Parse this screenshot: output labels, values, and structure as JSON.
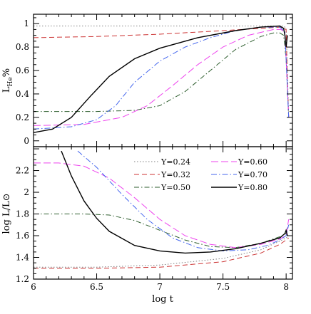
{
  "chart_data": [
    {
      "type": "line",
      "panel": "top",
      "xlabel": "",
      "ylabel": "L_He%",
      "ylabel_main": "L",
      "ylabel_sub": "He",
      "ylabel_suffix": "%",
      "xlim": [
        6,
        8.05
      ],
      "ylim": [
        -0.05,
        1.08
      ],
      "xticks": [
        6,
        6.5,
        7,
        7.5,
        8
      ],
      "xtick_labels_visible": false,
      "yticks": [
        0,
        0.2,
        0.4,
        0.6,
        0.8,
        1
      ],
      "ytick_labels": [
        "0",
        "0.2",
        "0.4",
        "0.6",
        "0.8",
        "1"
      ],
      "grid": false,
      "series": [
        {
          "name": "Y=0.24",
          "color": "#808080",
          "dash": "1.5,2.5",
          "x": [
            6,
            7.0,
            7.8,
            7.98,
            8.0,
            8.01,
            8.02
          ],
          "y": [
            0.98,
            0.98,
            0.98,
            0.98,
            0.96,
            0.6,
            0.2
          ]
        },
        {
          "name": "Y=0.32",
          "color": "#cc3333",
          "dash": "7,4",
          "x": [
            6,
            6.5,
            7.0,
            7.5,
            7.8,
            7.95,
            8.0,
            8.01,
            8.02
          ],
          "y": [
            0.88,
            0.89,
            0.91,
            0.94,
            0.96,
            0.97,
            0.95,
            0.5,
            0.2
          ]
        },
        {
          "name": "Y=0.50",
          "color": "#2e5e2e",
          "dash": "7,3,1.5,3",
          "x": [
            6,
            6.5,
            6.8,
            7.0,
            7.2,
            7.4,
            7.6,
            7.8,
            7.9,
            7.95,
            7.98,
            8.0,
            8.02
          ],
          "y": [
            0.25,
            0.25,
            0.26,
            0.3,
            0.42,
            0.6,
            0.78,
            0.89,
            0.92,
            0.92,
            0.9,
            0.7,
            0.2
          ]
        },
        {
          "name": "Y=0.60",
          "color": "#ee44ee",
          "dash": "10,4",
          "x": [
            6,
            6.4,
            6.7,
            6.9,
            7.1,
            7.3,
            7.5,
            7.7,
            7.9,
            7.96,
            7.99,
            8.0,
            8.02
          ],
          "y": [
            0.13,
            0.14,
            0.2,
            0.3,
            0.47,
            0.65,
            0.8,
            0.9,
            0.95,
            0.95,
            0.92,
            0.7,
            0.2
          ]
        },
        {
          "name": "Y=0.70",
          "color": "#4466ee",
          "dash": "8,3,1.5,3",
          "x": [
            6,
            6.3,
            6.5,
            6.65,
            6.8,
            7.0,
            7.2,
            7.4,
            7.6,
            7.8,
            7.95,
            7.99,
            8.02
          ],
          "y": [
            0.1,
            0.12,
            0.18,
            0.3,
            0.5,
            0.68,
            0.8,
            0.88,
            0.94,
            0.97,
            0.97,
            0.93,
            0.2
          ]
        },
        {
          "name": "Y=0.80",
          "color": "#000000",
          "dash": "",
          "x": [
            6,
            6.15,
            6.3,
            6.45,
            6.6,
            6.8,
            7.0,
            7.3,
            7.6,
            7.8,
            7.95,
            7.98,
            7.99,
            8.0,
            8.01
          ],
          "y": [
            0.07,
            0.1,
            0.2,
            0.38,
            0.55,
            0.7,
            0.79,
            0.88,
            0.94,
            0.97,
            0.98,
            0.96,
            0.9,
            0.8,
            0.9
          ]
        }
      ]
    },
    {
      "type": "line",
      "panel": "bottom",
      "xlabel": "log t",
      "ylabel": "log L/L⊙",
      "xlim": [
        6,
        8.05
      ],
      "ylim": [
        1.2,
        2.42
      ],
      "xticks": [
        6,
        6.5,
        7,
        7.5,
        8
      ],
      "xtick_labels": [
        "6",
        "6.5",
        "7",
        "7.5",
        "8"
      ],
      "yticks": [
        1.2,
        1.4,
        1.6,
        1.8,
        2,
        2.2
      ],
      "ytick_labels": [
        "1.2",
        "1.4",
        "1.6",
        "1.8",
        "2",
        "2.2"
      ],
      "grid": false,
      "legend": "top-right",
      "series": [
        {
          "name": "Y=0.24",
          "color": "#808080",
          "dash": "1.5,2.5",
          "x": [
            6,
            6.5,
            7.0,
            7.5,
            7.8,
            7.95,
            8.0,
            8.02
          ],
          "y": [
            1.31,
            1.31,
            1.33,
            1.39,
            1.47,
            1.55,
            1.58,
            1.6
          ]
        },
        {
          "name": "Y=0.32",
          "color": "#cc3333",
          "dash": "7,4",
          "x": [
            6,
            6.5,
            7.0,
            7.5,
            7.8,
            7.95,
            8.0,
            8.02
          ],
          "y": [
            1.3,
            1.3,
            1.31,
            1.36,
            1.44,
            1.52,
            1.56,
            1.58
          ]
        },
        {
          "name": "Y=0.50",
          "color": "#2e5e2e",
          "dash": "7,3,1.5,3",
          "x": [
            6,
            6.4,
            6.6,
            6.8,
            7.0,
            7.2,
            7.4,
            7.6,
            7.8,
            7.95,
            8.0,
            8.02
          ],
          "y": [
            1.8,
            1.8,
            1.79,
            1.74,
            1.65,
            1.56,
            1.5,
            1.49,
            1.53,
            1.59,
            1.62,
            1.7
          ]
        },
        {
          "name": "Y=0.60",
          "color": "#ee44ee",
          "dash": "10,4",
          "x": [
            6,
            6.2,
            6.4,
            6.6,
            6.8,
            7.0,
            7.2,
            7.4,
            7.6,
            7.8,
            7.95,
            8.0,
            8.02
          ],
          "y": [
            2.27,
            2.27,
            2.24,
            2.13,
            1.95,
            1.75,
            1.6,
            1.52,
            1.49,
            1.52,
            1.57,
            1.6,
            1.75
          ]
        },
        {
          "name": "Y=0.70",
          "color": "#4466ee",
          "dash": "8,3,1.5,3",
          "x": [
            6.35,
            6.5,
            6.7,
            6.9,
            7.1,
            7.3,
            7.5,
            7.7,
            7.85,
            7.95,
            8.0,
            8.02
          ],
          "y": [
            2.38,
            2.23,
            1.98,
            1.75,
            1.58,
            1.49,
            1.46,
            1.47,
            1.51,
            1.56,
            1.6,
            1.7
          ]
        },
        {
          "name": "Y=0.80",
          "color": "#000000",
          "dash": "",
          "x": [
            6.22,
            6.3,
            6.4,
            6.5,
            6.6,
            6.8,
            7.0,
            7.2,
            7.4,
            7.6,
            7.8,
            7.95,
            7.99,
            8.0,
            8.01
          ],
          "y": [
            2.38,
            2.15,
            1.92,
            1.76,
            1.64,
            1.51,
            1.46,
            1.44,
            1.45,
            1.48,
            1.53,
            1.58,
            1.62,
            1.65,
            1.6
          ]
        }
      ]
    }
  ]
}
